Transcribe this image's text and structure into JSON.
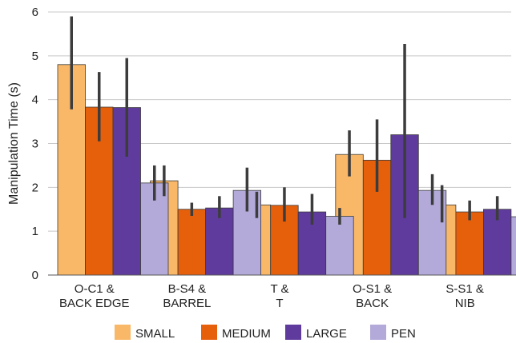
{
  "chart_data": {
    "type": "bar",
    "ylabel": "Manipulation Time (s)",
    "ylim": [
      0,
      6
    ],
    "yticks": [
      "0",
      "1",
      "2",
      "3",
      "4",
      "5",
      "6"
    ],
    "grid": true,
    "legend_position": "bottom",
    "categories": [
      [
        "O-C1 &",
        "BACK EDGE"
      ],
      [
        "B-S4 &",
        "BARREL"
      ],
      [
        "T &",
        "T"
      ],
      [
        "O-S1 &",
        "BACK"
      ],
      [
        "S-S1 &",
        "NIB"
      ]
    ],
    "series": [
      {
        "name": "SMALL",
        "color": "#f9b868",
        "values": [
          4.8,
          2.15,
          1.6,
          2.75,
          1.6
        ],
        "error_low": [
          3.78,
          1.8,
          1.3,
          2.25,
          1.2
        ],
        "error_high": [
          5.9,
          2.5,
          1.9,
          3.3,
          2.05
        ]
      },
      {
        "name": "MEDIUM",
        "color": "#e6600c",
        "values": [
          3.83,
          1.5,
          1.59,
          2.62,
          1.44
        ],
        "error_low": [
          3.05,
          1.35,
          1.22,
          1.9,
          1.25
        ],
        "error_high": [
          4.63,
          1.65,
          2.0,
          3.55,
          1.7
        ]
      },
      {
        "name": "LARGE",
        "color": "#5f3b9e",
        "values": [
          3.82,
          1.53,
          1.44,
          3.2,
          1.5
        ],
        "error_low": [
          2.7,
          1.3,
          1.15,
          1.3,
          1.25
        ],
        "error_high": [
          4.95,
          1.8,
          1.85,
          5.27,
          1.8
        ]
      },
      {
        "name": "PEN",
        "color": "#b3aad9",
        "values": [
          2.1,
          1.93,
          1.34,
          1.93,
          1.33
        ],
        "error_low": [
          1.7,
          1.45,
          1.15,
          1.6,
          1.1
        ],
        "error_high": [
          2.5,
          2.45,
          1.53,
          2.3,
          1.58
        ]
      }
    ]
  }
}
